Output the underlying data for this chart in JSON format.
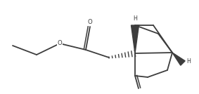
{
  "bg_color": "#ffffff",
  "line_color": "#3d3d3d",
  "line_width": 1.3,
  "figsize": [
    2.83,
    1.34
  ],
  "dpi": 100,
  "xlim": [
    0,
    283
  ],
  "ylim": [
    0,
    134
  ]
}
